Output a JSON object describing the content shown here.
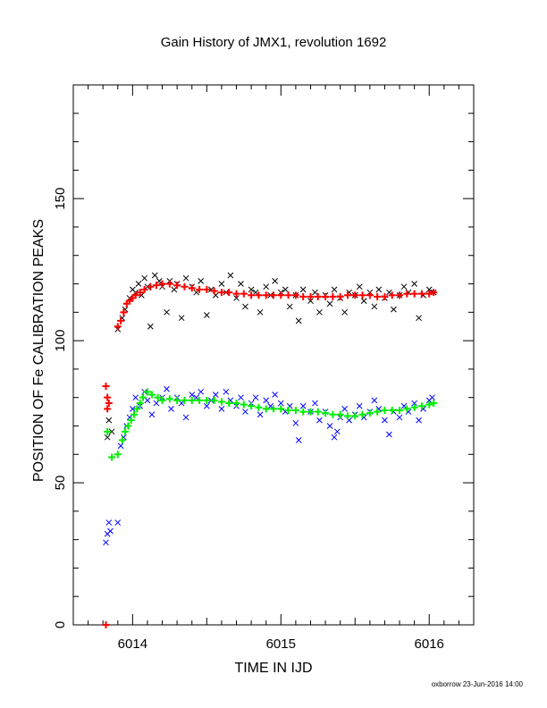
{
  "chart_data": {
    "type": "scatter",
    "title": "Gain History of JMX1, revolution 1692",
    "xlabel": "TIME IN IJD",
    "ylabel": "POSITION OF Fe CALIBRATION PEAKS",
    "xlim": [
      6013.6,
      6016.3
    ],
    "ylim": [
      0,
      190
    ],
    "x_ticks": [
      6014,
      6015,
      6016
    ],
    "x_tick_labels": [
      "6014",
      "6015",
      "6016"
    ],
    "y_ticks": [
      0,
      50,
      100,
      150
    ],
    "y_tick_labels": [
      "0",
      "50",
      "100",
      "150"
    ],
    "grid": false,
    "legend": "none",
    "series": [
      {
        "key": "black_scatter",
        "marker": "x",
        "color": "#000000",
        "points": [
          [
            6013.83,
            66
          ],
          [
            6013.86,
            68
          ],
          [
            6013.84,
            72
          ],
          [
            6013.9,
            104
          ],
          [
            6013.93,
            108
          ],
          [
            6013.95,
            111
          ],
          [
            6013.98,
            115
          ],
          [
            6014.0,
            118
          ],
          [
            6014.02,
            117
          ],
          [
            6014.04,
            120
          ],
          [
            6014.06,
            116
          ],
          [
            6014.08,
            122
          ],
          [
            6014.1,
            119
          ],
          [
            6014.12,
            105
          ],
          [
            6014.15,
            123
          ],
          [
            6014.18,
            121
          ],
          [
            6014.2,
            119
          ],
          [
            6014.23,
            110
          ],
          [
            6014.25,
            121
          ],
          [
            6014.28,
            118
          ],
          [
            6014.3,
            120
          ],
          [
            6014.33,
            108
          ],
          [
            6014.36,
            122
          ],
          [
            6014.4,
            119
          ],
          [
            6014.43,
            117
          ],
          [
            6014.46,
            121
          ],
          [
            6014.5,
            109
          ],
          [
            6014.53,
            118
          ],
          [
            6014.56,
            116
          ],
          [
            6014.6,
            120
          ],
          [
            6014.63,
            117
          ],
          [
            6014.66,
            123
          ],
          [
            6014.7,
            115
          ],
          [
            6014.73,
            120
          ],
          [
            6014.76,
            112
          ],
          [
            6014.8,
            118
          ],
          [
            6014.83,
            117
          ],
          [
            6014.86,
            110
          ],
          [
            6014.9,
            119
          ],
          [
            6014.93,
            116
          ],
          [
            6014.96,
            121
          ],
          [
            6015.0,
            117
          ],
          [
            6015.03,
            118
          ],
          [
            6015.06,
            112
          ],
          [
            6015.1,
            116
          ],
          [
            6015.12,
            107
          ],
          [
            6015.15,
            118
          ],
          [
            6015.2,
            114
          ],
          [
            6015.23,
            117
          ],
          [
            6015.26,
            110
          ],
          [
            6015.3,
            116
          ],
          [
            6015.33,
            113
          ],
          [
            6015.36,
            118
          ],
          [
            6015.4,
            115
          ],
          [
            6015.43,
            110
          ],
          [
            6015.46,
            117
          ],
          [
            6015.5,
            116
          ],
          [
            6015.53,
            119
          ],
          [
            6015.56,
            114
          ],
          [
            6015.6,
            117
          ],
          [
            6015.63,
            112
          ],
          [
            6015.66,
            118
          ],
          [
            6015.7,
            115
          ],
          [
            6015.73,
            117
          ],
          [
            6015.76,
            111
          ],
          [
            6015.8,
            116
          ],
          [
            6015.83,
            119
          ],
          [
            6015.86,
            117
          ],
          [
            6015.9,
            120
          ],
          [
            6015.93,
            108
          ],
          [
            6015.96,
            116
          ],
          [
            6016.0,
            118
          ],
          [
            6016.03,
            117
          ]
        ]
      },
      {
        "key": "red_fit",
        "marker": "+",
        "color": "#ff0000",
        "points": [
          [
            6013.82,
            84
          ],
          [
            6013.83,
            80
          ],
          [
            6013.83,
            76
          ],
          [
            6013.84,
            78
          ],
          [
            6013.82,
            0
          ],
          [
            6013.9,
            105
          ],
          [
            6013.92,
            107
          ],
          [
            6013.94,
            110
          ],
          [
            6013.96,
            113
          ],
          [
            6013.98,
            114
          ],
          [
            6014.0,
            115
          ],
          [
            6014.02,
            116
          ],
          [
            6014.05,
            117
          ],
          [
            6014.08,
            118
          ],
          [
            6014.12,
            119
          ],
          [
            6014.16,
            119.5
          ],
          [
            6014.2,
            120
          ],
          [
            6014.25,
            120
          ],
          [
            6014.3,
            119.5
          ],
          [
            6014.35,
            119
          ],
          [
            6014.4,
            118.5
          ],
          [
            6014.45,
            118
          ],
          [
            6014.5,
            118
          ],
          [
            6014.55,
            117.5
          ],
          [
            6014.6,
            117
          ],
          [
            6014.65,
            117
          ],
          [
            6014.7,
            116.5
          ],
          [
            6014.75,
            116.5
          ],
          [
            6014.8,
            116
          ],
          [
            6014.85,
            116
          ],
          [
            6014.9,
            116
          ],
          [
            6014.95,
            116
          ],
          [
            6015.0,
            116
          ],
          [
            6015.05,
            116
          ],
          [
            6015.1,
            116
          ],
          [
            6015.15,
            115.5
          ],
          [
            6015.2,
            115.5
          ],
          [
            6015.25,
            115.5
          ],
          [
            6015.3,
            115.5
          ],
          [
            6015.35,
            115.5
          ],
          [
            6015.4,
            115.5
          ],
          [
            6015.45,
            116
          ],
          [
            6015.5,
            116
          ],
          [
            6015.55,
            116
          ],
          [
            6015.6,
            116
          ],
          [
            6015.65,
            115.5
          ],
          [
            6015.7,
            115.5
          ],
          [
            6015.75,
            116
          ],
          [
            6015.8,
            116
          ],
          [
            6015.85,
            116.5
          ],
          [
            6015.9,
            116.5
          ],
          [
            6015.95,
            116.5
          ],
          [
            6016.0,
            116.5
          ],
          [
            6016.03,
            117
          ]
        ]
      },
      {
        "key": "blue_scatter",
        "marker": "x",
        "color": "#0000ff",
        "points": [
          [
            6013.82,
            29
          ],
          [
            6013.83,
            32
          ],
          [
            6013.84,
            36
          ],
          [
            6013.85,
            33
          ],
          [
            6013.9,
            36
          ],
          [
            6013.92,
            63
          ],
          [
            6013.94,
            66
          ],
          [
            6013.96,
            70
          ],
          [
            6013.98,
            73
          ],
          [
            6014.0,
            76
          ],
          [
            6014.02,
            80
          ],
          [
            6014.05,
            77
          ],
          [
            6014.08,
            82
          ],
          [
            6014.1,
            79
          ],
          [
            6014.13,
            74
          ],
          [
            6014.16,
            78
          ],
          [
            6014.2,
            80
          ],
          [
            6014.23,
            83
          ],
          [
            6014.26,
            76
          ],
          [
            6014.3,
            80
          ],
          [
            6014.33,
            78
          ],
          [
            6014.36,
            73
          ],
          [
            6014.4,
            81
          ],
          [
            6014.43,
            80
          ],
          [
            6014.46,
            82
          ],
          [
            6014.5,
            77
          ],
          [
            6014.53,
            79
          ],
          [
            6014.56,
            81
          ],
          [
            6014.6,
            76
          ],
          [
            6014.63,
            82
          ],
          [
            6014.66,
            79
          ],
          [
            6014.7,
            77
          ],
          [
            6014.73,
            80
          ],
          [
            6014.76,
            75
          ],
          [
            6014.8,
            78
          ],
          [
            6014.83,
            80
          ],
          [
            6014.86,
            74
          ],
          [
            6014.9,
            79
          ],
          [
            6014.93,
            77
          ],
          [
            6014.96,
            81
          ],
          [
            6015.0,
            78
          ],
          [
            6015.03,
            75
          ],
          [
            6015.06,
            77
          ],
          [
            6015.1,
            71
          ],
          [
            6015.12,
            65
          ],
          [
            6015.15,
            77
          ],
          [
            6015.2,
            75
          ],
          [
            6015.23,
            78
          ],
          [
            6015.26,
            72
          ],
          [
            6015.3,
            75
          ],
          [
            6015.33,
            70
          ],
          [
            6015.36,
            66
          ],
          [
            6015.38,
            68
          ],
          [
            6015.4,
            73
          ],
          [
            6015.43,
            76
          ],
          [
            6015.46,
            72
          ],
          [
            6015.5,
            74
          ],
          [
            6015.53,
            77
          ],
          [
            6015.56,
            73
          ],
          [
            6015.6,
            75
          ],
          [
            6015.63,
            79
          ],
          [
            6015.66,
            76
          ],
          [
            6015.7,
            72
          ],
          [
            6015.73,
            67
          ],
          [
            6015.76,
            75
          ],
          [
            6015.8,
            73
          ],
          [
            6015.83,
            77
          ],
          [
            6015.86,
            75
          ],
          [
            6015.9,
            78
          ],
          [
            6015.93,
            72
          ],
          [
            6015.96,
            76
          ],
          [
            6016.0,
            79
          ],
          [
            6016.02,
            80
          ]
        ]
      },
      {
        "key": "green_fit",
        "marker": "+",
        "color": "#00ee00",
        "points": [
          [
            6013.83,
            68
          ],
          [
            6013.86,
            59
          ],
          [
            6013.9,
            60
          ],
          [
            6013.93,
            65
          ],
          [
            6013.95,
            68
          ],
          [
            6013.97,
            70
          ],
          [
            6013.99,
            72
          ],
          [
            6014.01,
            74
          ],
          [
            6014.03,
            76
          ],
          [
            6014.05,
            78
          ],
          [
            6014.07,
            80
          ],
          [
            6014.1,
            82
          ],
          [
            6014.13,
            81
          ],
          [
            6014.17,
            80
          ],
          [
            6014.2,
            79
          ],
          [
            6014.25,
            79.5
          ],
          [
            6014.3,
            79
          ],
          [
            6014.35,
            79
          ],
          [
            6014.4,
            79
          ],
          [
            6014.45,
            79
          ],
          [
            6014.5,
            79
          ],
          [
            6014.55,
            79
          ],
          [
            6014.6,
            78.5
          ],
          [
            6014.65,
            78
          ],
          [
            6014.7,
            78
          ],
          [
            6014.75,
            77.5
          ],
          [
            6014.8,
            77
          ],
          [
            6014.85,
            76.5
          ],
          [
            6014.9,
            76
          ],
          [
            6014.95,
            76
          ],
          [
            6015.0,
            76
          ],
          [
            6015.05,
            75.5
          ],
          [
            6015.1,
            75.5
          ],
          [
            6015.15,
            75
          ],
          [
            6015.2,
            75
          ],
          [
            6015.25,
            75
          ],
          [
            6015.3,
            74.5
          ],
          [
            6015.35,
            74
          ],
          [
            6015.4,
            74
          ],
          [
            6015.45,
            73.5
          ],
          [
            6015.5,
            73.5
          ],
          [
            6015.55,
            74
          ],
          [
            6015.6,
            74.5
          ],
          [
            6015.65,
            75
          ],
          [
            6015.7,
            75.5
          ],
          [
            6015.75,
            75.5
          ],
          [
            6015.8,
            75.5
          ],
          [
            6015.85,
            76
          ],
          [
            6015.9,
            76.5
          ],
          [
            6015.95,
            77
          ],
          [
            6016.0,
            77.5
          ],
          [
            6016.03,
            78
          ]
        ]
      }
    ]
  },
  "footer": {
    "credit": "oxborrow 23-Jun-2016 14:00"
  }
}
